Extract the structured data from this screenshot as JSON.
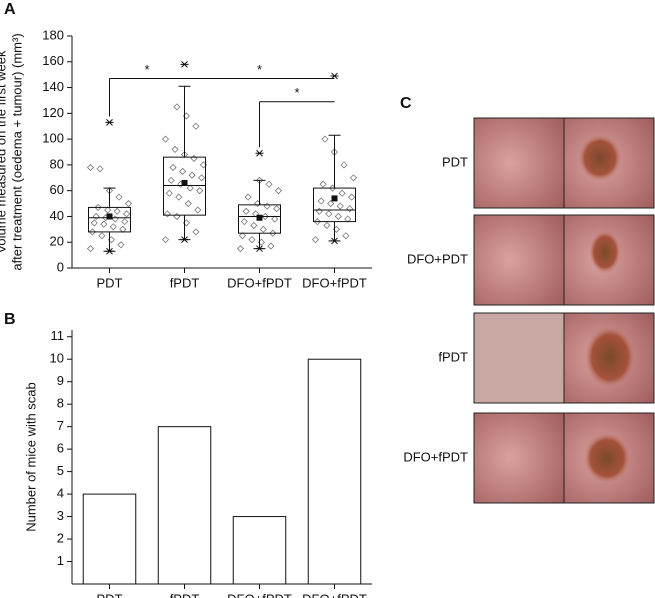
{
  "panel_labels": [
    "A",
    "B",
    "C"
  ],
  "chart_data": [
    {
      "type": "box",
      "ylabel": [
        "Volume measured on the first week",
        "after treatment (oedema + tumour) (mm³)"
      ],
      "categories": [
        "PDT",
        "fPDT",
        "DFO+fPDT",
        "DFO+fPDT"
      ],
      "ylim": [
        0,
        180
      ],
      "yticks": [
        0,
        20,
        40,
        60,
        80,
        100,
        120,
        140,
        160,
        180
      ],
      "boxes": [
        {
          "whisker_low": 13,
          "q1": 28,
          "median": 39,
          "q3": 47,
          "whisker_high": 62,
          "mean": 40,
          "extremes": [
            13,
            113
          ],
          "points": [
            15,
            18,
            22,
            25,
            28,
            30,
            32,
            34,
            35,
            36,
            38,
            39,
            40,
            42,
            44,
            45,
            47,
            50,
            55,
            60,
            77,
            78
          ]
        },
        {
          "whisker_low": 22,
          "q1": 41,
          "median": 64,
          "q3": 86,
          "whisker_high": 141,
          "mean": 66,
          "extremes": [
            22,
            158
          ],
          "points": [
            22,
            28,
            35,
            40,
            42,
            45,
            50,
            55,
            58,
            60,
            62,
            65,
            68,
            70,
            72,
            75,
            78,
            80,
            85,
            88,
            92,
            100,
            110,
            118,
            125
          ]
        },
        {
          "whisker_low": 15,
          "q1": 27,
          "median": 40,
          "q3": 49,
          "whisker_high": 68,
          "mean": 39,
          "extremes": [
            15,
            89
          ],
          "points": [
            15,
            17,
            20,
            22,
            25,
            27,
            30,
            33,
            36,
            38,
            40,
            42,
            44,
            46,
            48,
            50,
            55,
            60,
            65,
            68
          ]
        },
        {
          "whisker_low": 21,
          "q1": 36,
          "median": 45,
          "q3": 62,
          "whisker_high": 103,
          "mean": 54,
          "extremes": [
            21,
            149
          ],
          "points": [
            22,
            25,
            30,
            33,
            36,
            38,
            40,
            42,
            44,
            46,
            48,
            50,
            52,
            55,
            58,
            62,
            65,
            70,
            80,
            90,
            100
          ]
        }
      ],
      "brackets": [
        {
          "from": 0,
          "to": 1,
          "y": 147,
          "label": "*"
        },
        {
          "from": 1,
          "to": 3,
          "y": 147,
          "label": "*"
        },
        {
          "from": 2,
          "to": 3,
          "y": 129,
          "label": "*"
        }
      ]
    },
    {
      "type": "bar",
      "ylabel": "Number of mice with scab",
      "categories": [
        "PDT",
        "fPDT",
        "DFO+fPDT",
        "DFO+fPDT"
      ],
      "values": [
        4,
        7,
        3,
        10
      ],
      "ylim": [
        0,
        11.3
      ],
      "yticks": [
        1,
        2,
        3,
        4,
        5,
        6,
        7,
        8,
        9,
        10,
        11
      ],
      "color": "#ffffff"
    }
  ],
  "photo_labels": [
    "PDT",
    "DFO+PDT",
    "fPDT",
    "DFO+fPDT"
  ]
}
